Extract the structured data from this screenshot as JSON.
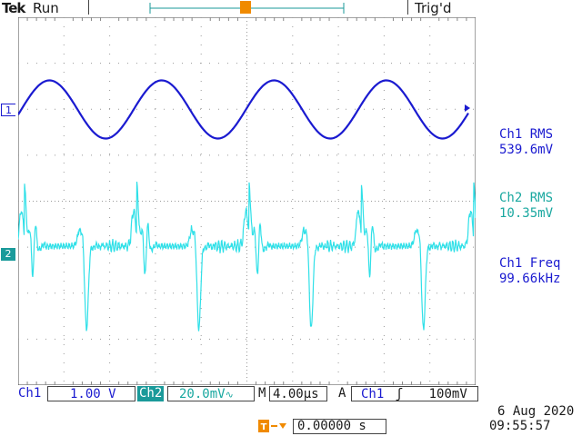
{
  "header": {
    "brand": "Tek",
    "run_state": "Run",
    "trigger_status": "Trig'd"
  },
  "markers": {
    "trigger_marker": "T",
    "ch1_marker": "1",
    "ch2_marker": "2"
  },
  "measurements": [
    {
      "label": "Ch1 RMS",
      "value": "539.6mV",
      "color": "#1a1ad0"
    },
    {
      "label": "Ch2 RMS",
      "value": "10.35mV",
      "color": "#1aa8a0"
    },
    {
      "label": "Ch1 Freq",
      "value": "99.66kHz",
      "color": "#1a1ad0"
    }
  ],
  "status_bar": {
    "ch1_label": "Ch1",
    "ch1_scale": "1.00 V",
    "ch2_label": "Ch2",
    "ch2_scale": "20.0mV",
    "ch2_bw_symbol": "∿",
    "timebase_label": "M",
    "timebase": "4.00µs",
    "acq_label": "A",
    "trigger_source": "Ch1",
    "trigger_slope_symbol": "ʃ",
    "trigger_level": "100mV"
  },
  "trigger_position": {
    "value": "0.00000 s"
  },
  "datetime": {
    "date": "6 Aug 2020",
    "time": "09:55:57"
  },
  "colors": {
    "ch1": "#1a1ad0",
    "ch2": "#2fe0e8",
    "trigger": "#f08a00",
    "grid": "#888888"
  },
  "chart_data": {
    "type": "line",
    "series": [
      {
        "name": "Ch1",
        "values": []
      },
      {
        "name": "Ch2",
        "values": []
      }
    ]
  }
}
